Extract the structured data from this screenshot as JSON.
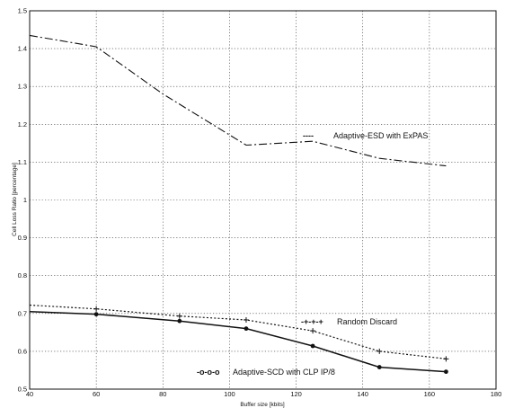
{
  "chart_data": {
    "type": "line",
    "title": "",
    "xlabel": "Buffer size [kbits]",
    "ylabel": "Cell Loss Ratio [percentage]",
    "xlim": [
      40,
      180
    ],
    "ylim": [
      0.5,
      1.5
    ],
    "xticks": [
      40,
      60,
      80,
      100,
      120,
      140,
      160,
      180
    ],
    "yticks": [
      0.5,
      0.6,
      0.7,
      0.8,
      0.9,
      1,
      1.1,
      1.2,
      1.3,
      1.4,
      1.5
    ],
    "grid": true,
    "series": [
      {
        "name": "Adaptive-ESD with ExPAS",
        "style": "dash-dot",
        "marker": "none",
        "x": [
          40,
          60,
          80,
          105,
          125,
          145,
          165
        ],
        "y": [
          1.435,
          1.405,
          1.28,
          1.145,
          1.155,
          1.11,
          1.09
        ]
      },
      {
        "name": "Random Discard",
        "style": "dotted",
        "marker": "plus",
        "x": [
          40,
          60,
          85,
          105,
          125,
          145,
          165
        ],
        "y": [
          0.722,
          0.712,
          0.693,
          0.683,
          0.654,
          0.6,
          0.58
        ]
      },
      {
        "name": "Adaptive-SCD with CLP IP/8",
        "style": "solid",
        "marker": "circle",
        "x": [
          40,
          60,
          85,
          105,
          125,
          145,
          165
        ],
        "y": [
          0.705,
          0.698,
          0.68,
          0.66,
          0.614,
          0.558,
          0.546
        ]
      }
    ],
    "legend": {
      "esd": {
        "symbol": "----",
        "label": "Adaptive-ESD with ExPAS"
      },
      "random": {
        "symbol": "-+-+-+",
        "label": "Random Discard"
      },
      "scd": {
        "symbol": "-o-o-o",
        "label": "Adaptive-SCD with CLP IP/8"
      }
    },
    "colors": {
      "lines": "#111111",
      "grid": "#333333",
      "background": "#ffffff"
    }
  }
}
